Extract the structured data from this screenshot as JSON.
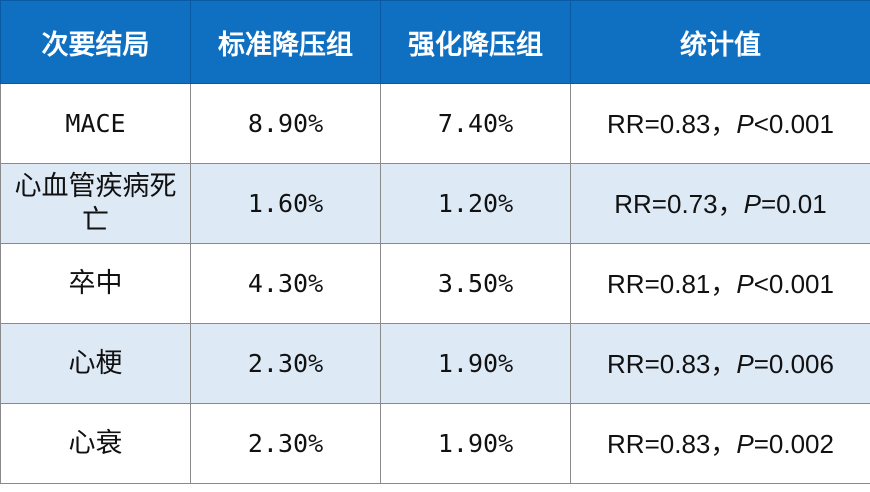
{
  "header": {
    "outcome": "次要结局",
    "standard": "标准降压组",
    "intensive": "强化降压组",
    "stats": "统计值"
  },
  "rows": [
    {
      "outcome": "MACE",
      "standard": "8.90%",
      "intensive": "7.40%",
      "rr": "RR=0.83，",
      "p_label": "P",
      "p_value": "<0.001"
    },
    {
      "outcome": "心血管疾病死亡",
      "standard": "1.60%",
      "intensive": "1.20%",
      "rr": "RR=0.73，",
      "p_label": "P",
      "p_value": "=0.01"
    },
    {
      "outcome": "卒中",
      "standard": "4.30%",
      "intensive": "3.50%",
      "rr": "RR=0.81，",
      "p_label": "P",
      "p_value": "<0.001"
    },
    {
      "outcome": "心梗",
      "standard": "2.30%",
      "intensive": "1.90%",
      "rr": "RR=0.83，",
      "p_label": "P",
      "p_value": "=0.006"
    },
    {
      "outcome": "心衰",
      "standard": "2.30%",
      "intensive": "1.90%",
      "rr": "RR=0.83，",
      "p_label": "P",
      "p_value": "=0.002"
    }
  ],
  "colors": {
    "header_bg": "#0f6fc1",
    "header_text": "#ffffff",
    "alt_row_bg": "#dde9f5",
    "border": "#8a8a8a"
  }
}
